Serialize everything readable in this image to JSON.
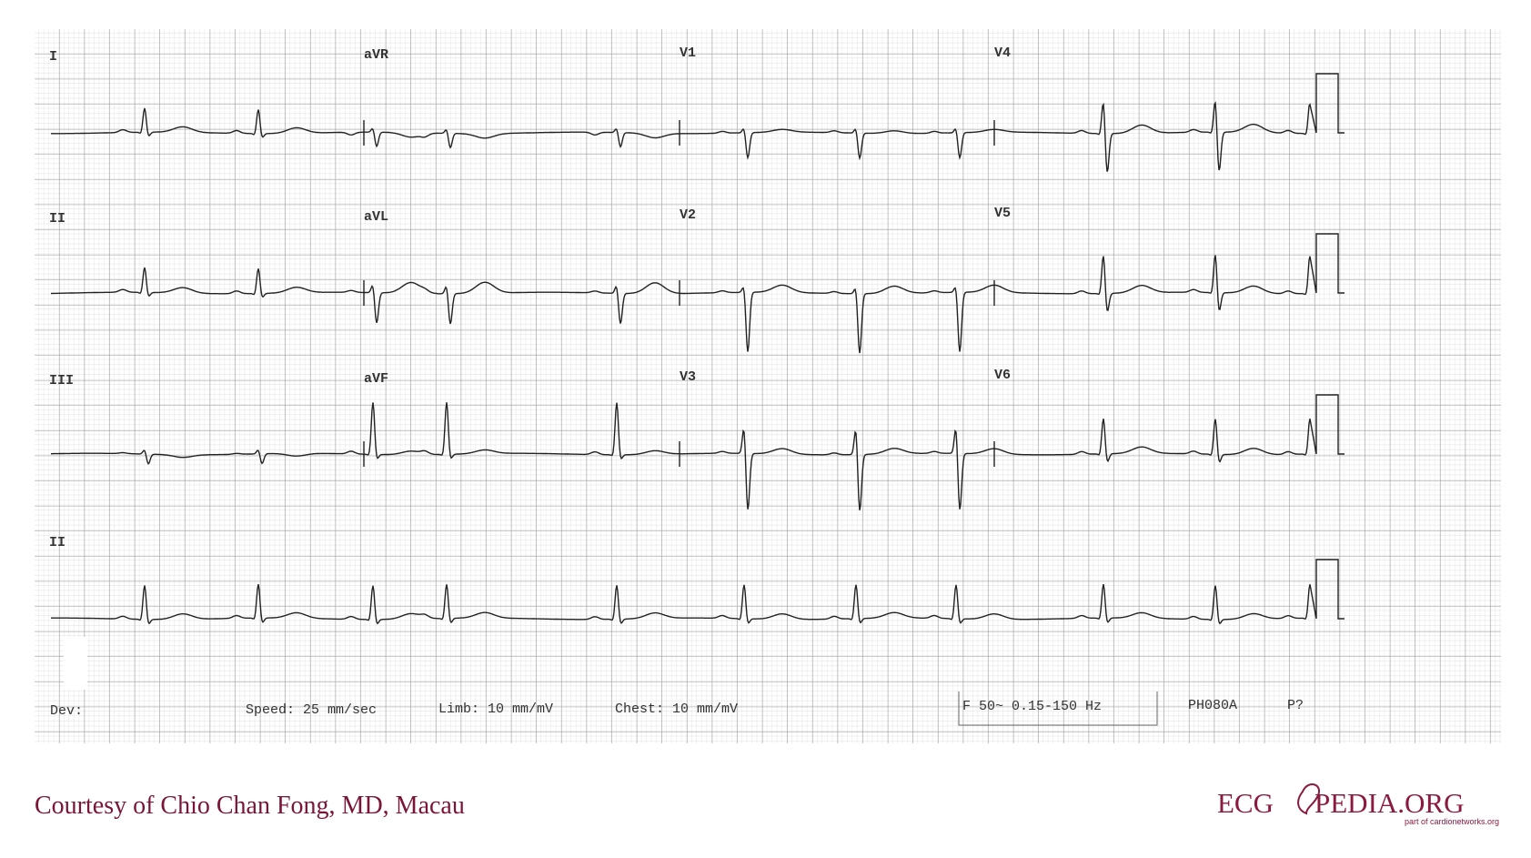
{
  "leads": [
    "I",
    "aVR",
    "V1",
    "V4",
    "II",
    "aVL",
    "V2",
    "V5",
    "III",
    "aVF",
    "V3",
    "V6",
    "II"
  ],
  "footer": {
    "dev": "Dev:",
    "speed": "Speed: 25 mm/sec",
    "limb": "Limb: 10 mm/mV",
    "chest": "Chest: 10 mm/mV",
    "filter": "F 50~ 0.15-150 Hz",
    "device": "PH080A",
    "p": "P?"
  },
  "credit": "Courtesy of Chio Chan Fong, MD, Macau",
  "logo": {
    "left": "ECG",
    "right": "PEDIA.ORG",
    "tagline": "part of cardionetworks.org"
  }
}
